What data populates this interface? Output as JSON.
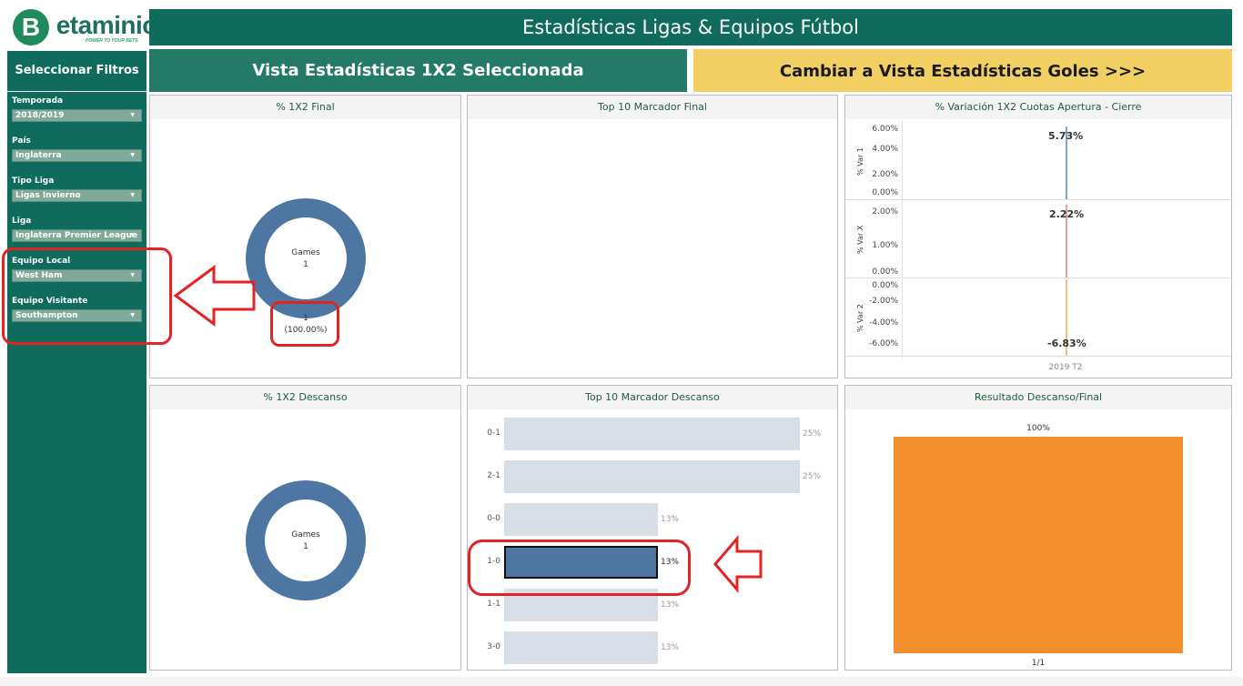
{
  "logo": {
    "initial": "B",
    "text": "etaminic",
    "tagline": "POWER TO YOUR BETS"
  },
  "header": {
    "title": "Estadísticas Ligas & Equipos Fútbol"
  },
  "buttons": {
    "select_filters": "Seleccionar Filtros",
    "current_view": "Vista Estadísticas 1X2 Seleccionada",
    "switch_view": "Cambiar a Vista Estadísticas Goles >>>"
  },
  "filters": [
    {
      "label": "Temporada",
      "value": "2018/2019"
    },
    {
      "label": "País",
      "value": "Inglaterra"
    },
    {
      "label": "Tipo Liga",
      "value": "Ligas Invierno"
    },
    {
      "label": "Liga",
      "value": "Inglaterra Premier League"
    },
    {
      "label": "Equipo Local",
      "value": "West Ham"
    },
    {
      "label": "Equipo Visitante",
      "value": "Southampton"
    }
  ],
  "panels": {
    "pct_final": {
      "title": "% 1X2 Final",
      "center_label": "Games",
      "center_value": "1",
      "slice_count": "1",
      "slice_pct": "(100.00%)"
    },
    "top10_final": {
      "title": "Top 10 Marcador Final"
    },
    "variation": {
      "title": "% Variación 1X2 Cuotas Apertura - Cierre",
      "x_label": "2019 T2",
      "rows": [
        {
          "axis": "% Var 1",
          "ticks": [
            "6.00%",
            "4.00%",
            "2.00%",
            "0.00%"
          ],
          "value_label": "5.73%",
          "color": "#7aa6cc"
        },
        {
          "axis": "% Var X",
          "ticks": [
            "2.00%",
            "1.00%",
            "0.00%"
          ],
          "value_label": "2.22%",
          "color": "#e8a0a6"
        },
        {
          "axis": "% Var 2",
          "ticks": [
            "0.00%",
            "-2.00%",
            "-4.00%",
            "-6.00%"
          ],
          "value_label": "-6.83%",
          "color": "#f2c07e"
        }
      ]
    },
    "pct_descanso": {
      "title": "% 1X2 Descanso",
      "center_label": "Games",
      "center_value": "1"
    },
    "top10_descanso": {
      "title": "Top 10 Marcador Descanso",
      "highlight_color": "#4e76a3",
      "bars": [
        {
          "score": "0-1",
          "pct": "25%",
          "value": 25
        },
        {
          "score": "2-1",
          "pct": "25%",
          "value": 25
        },
        {
          "score": "0-0",
          "pct": "13%",
          "value": 13
        },
        {
          "score": "1-0",
          "pct": "13%",
          "value": 13,
          "highlight": true
        },
        {
          "score": "1-1",
          "pct": "13%",
          "value": 13
        },
        {
          "score": "3-0",
          "pct": "13%",
          "value": 13
        }
      ]
    },
    "resultado": {
      "title": "Resultado Descanso/Final",
      "bar_label": "100%",
      "x_label": "1/1",
      "bar_color": "#f28e2b"
    }
  },
  "footer": {
    "text": ""
  }
}
